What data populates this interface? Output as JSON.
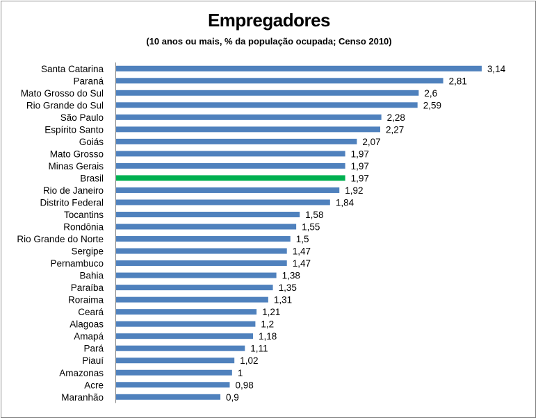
{
  "chart_data": {
    "type": "bar",
    "orientation": "horizontal",
    "title": "Empregadores",
    "subtitle": "(10 anos ou mais, % da população ocupada; Censo 2010)",
    "xlabel": "",
    "ylabel": "",
    "xlim": [
      0,
      3.14
    ],
    "grid": false,
    "legend": "none",
    "colors": {
      "default": "#4f81bd",
      "highlight": "#00b050"
    },
    "highlight": "Brasil",
    "categories": [
      "Santa Catarina",
      "Paraná",
      "Mato Grosso do Sul",
      "Rio Grande do Sul",
      "São Paulo",
      "Espírito Santo",
      "Goiás",
      "Mato Grosso",
      "Minas Gerais",
      "Brasil",
      "Rio de Janeiro",
      "Distrito Federal",
      "Tocantins",
      "Rondônia",
      "Rio Grande do Norte",
      "Sergipe",
      "Pernambuco",
      "Bahia",
      "Paraíba",
      "Roraima",
      "Ceará",
      "Alagoas",
      "Amapá",
      "Pará",
      "Piauí",
      "Amazonas",
      "Acre",
      "Maranhão"
    ],
    "values": [
      3.14,
      2.81,
      2.6,
      2.59,
      2.28,
      2.27,
      2.07,
      1.97,
      1.97,
      1.97,
      1.92,
      1.84,
      1.58,
      1.55,
      1.5,
      1.47,
      1.47,
      1.38,
      1.35,
      1.31,
      1.21,
      1.2,
      1.18,
      1.11,
      1.02,
      1,
      0.98,
      0.9
    ],
    "value_labels": [
      "3,14",
      "2,81",
      "2,6",
      "2,59",
      "2,28",
      "2,27",
      "2,07",
      "1,97",
      "1,97",
      "1,97",
      "1,92",
      "1,84",
      "1,58",
      "1,55",
      "1,5",
      "1,47",
      "1,47",
      "1,38",
      "1,35",
      "1,31",
      "1,21",
      "1,2",
      "1,18",
      "1,11",
      "1,02",
      "1",
      "0,98",
      "0,9"
    ]
  }
}
